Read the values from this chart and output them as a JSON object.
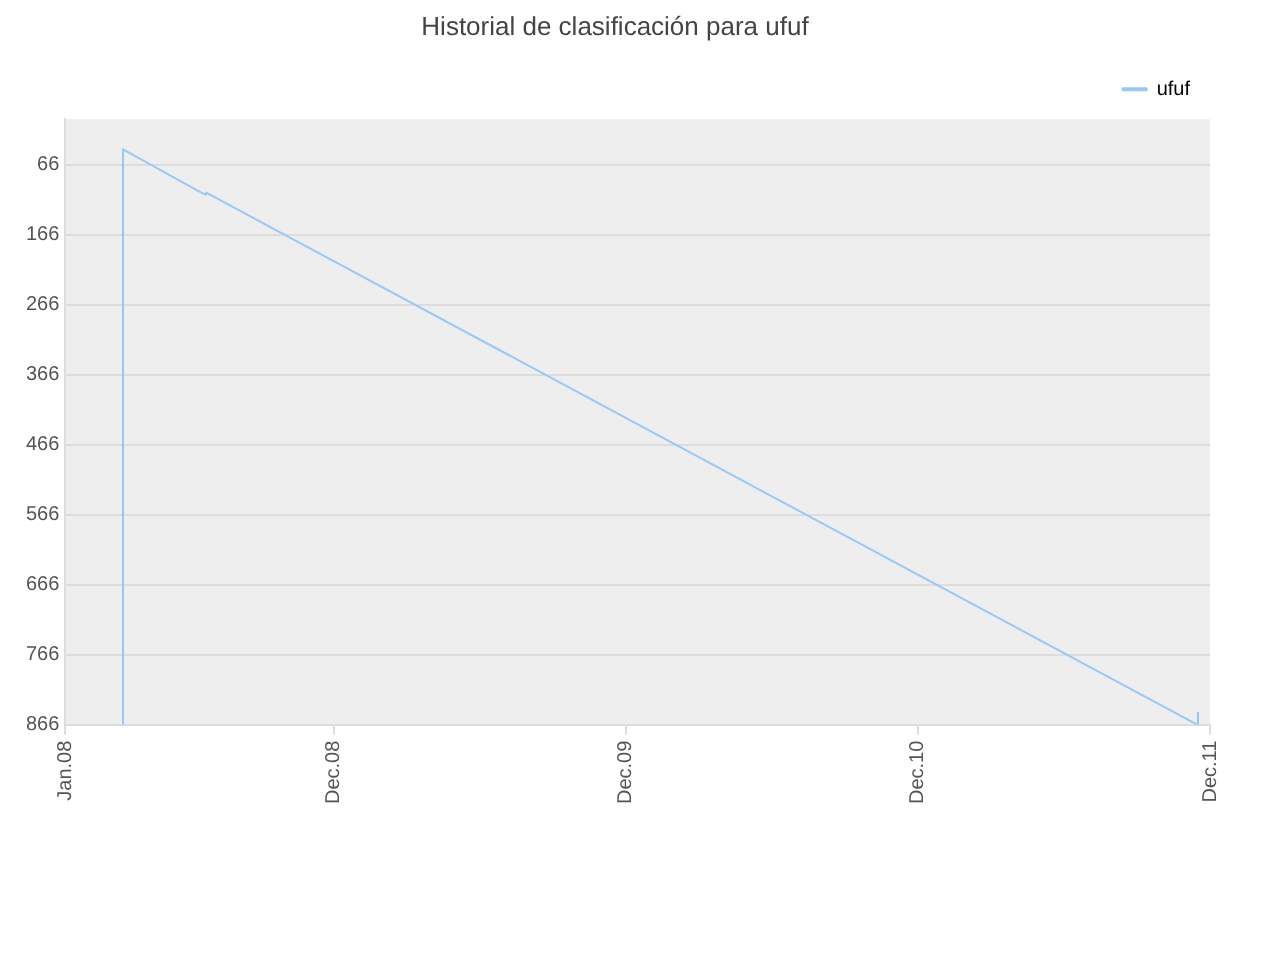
{
  "chart_data": {
    "type": "line",
    "title": "Historial de clasificación para ufuf",
    "x": [
      "2008-03-12",
      "2008-03-13",
      "2008-06-24",
      "2008-06-25",
      "2011-11-15",
      "2011-11-16"
    ],
    "series": [
      {
        "name": "ufuf",
        "color": "#99c8f7",
        "values": [
          866,
          44,
          109,
          106,
          866,
          848
        ]
      }
    ],
    "xlim": [
      "2008-01-01",
      "2011-12-01"
    ],
    "xticks": [
      {
        "value": "2008-01-01",
        "label": "Jan.08"
      },
      {
        "value": "2008-12-01",
        "label": "Dec.08"
      },
      {
        "value": "2009-12-01",
        "label": "Dec.09"
      },
      {
        "value": "2010-12-01",
        "label": "Dec.10"
      },
      {
        "value": "2011-12-01",
        "label": "Dec.11"
      }
    ],
    "ylim": [
      866,
      1
    ],
    "yticks": [
      66,
      166,
      266,
      366,
      466,
      566,
      666,
      766,
      866
    ],
    "grid": "y",
    "legend": "top right",
    "marker": "none",
    "line_style": "solid"
  }
}
